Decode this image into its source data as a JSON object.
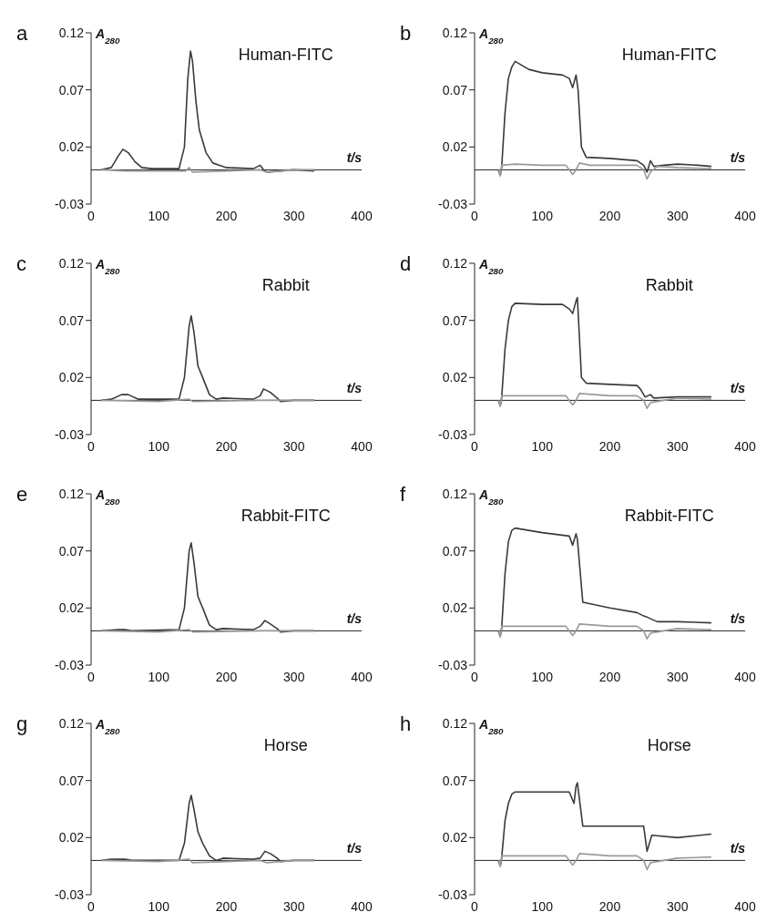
{
  "chart_data": [
    {
      "type": "line",
      "title": "Human-FITC",
      "annotations": [
        "a"
      ],
      "xlabel": "t/s",
      "ylabel": "A$_{280}$",
      "xlim": [
        0,
        400
      ],
      "xticks": [
        0,
        100,
        200,
        300,
        400
      ],
      "ylim": [
        -0.03,
        0.12
      ],
      "yticks": [
        -0.03,
        0.02,
        0.07,
        0.12
      ],
      "marker": "none",
      "series": [
        {
          "color": "#3a3a3a",
          "x": [
            15,
            30,
            40,
            47,
            55,
            65,
            75,
            90,
            130,
            138,
            143,
            147,
            150,
            155,
            160,
            170,
            180,
            190,
            200,
            240,
            250,
            255,
            260,
            280,
            300,
            330
          ],
          "values": [
            0,
            0.002,
            0.012,
            0.018,
            0.015,
            0.007,
            0.002,
            0.001,
            0.001,
            0.02,
            0.08,
            0.104,
            0.095,
            0.06,
            0.035,
            0.015,
            0.006,
            0.004,
            0.002,
            0.001,
            0.004,
            0,
            -0.002,
            -0.001,
            0,
            -0.001
          ]
        },
        {
          "color": "#9a9a9a",
          "x": [
            15,
            50,
            100,
            140,
            145,
            150,
            200,
            250,
            260,
            300,
            330
          ],
          "values": [
            0,
            -0.001,
            -0.001,
            -0.001,
            0.002,
            -0.002,
            -0.001,
            0,
            -0.002,
            0,
            0
          ]
        }
      ]
    },
    {
      "type": "line",
      "title": "Human-FITC",
      "annotations": [
        "b"
      ],
      "xlabel": "t/s",
      "ylabel": "A$_{280}$",
      "xlim": [
        0,
        400
      ],
      "xticks": [
        0,
        100,
        200,
        300,
        400
      ],
      "ylim": [
        -0.03,
        0.12
      ],
      "yticks": [
        -0.03,
        0.02,
        0.07,
        0.12
      ],
      "marker": "none",
      "series": [
        {
          "color": "#3a3a3a",
          "x": [
            35,
            38,
            40,
            45,
            50,
            55,
            60,
            80,
            100,
            130,
            140,
            145,
            150,
            153,
            158,
            165,
            200,
            240,
            250,
            255,
            260,
            265,
            280,
            300,
            330,
            350
          ],
          "values": [
            0,
            -0.005,
            0.002,
            0.05,
            0.08,
            0.09,
            0.095,
            0.088,
            0.085,
            0.083,
            0.08,
            0.072,
            0.083,
            0.07,
            0.02,
            0.011,
            0.01,
            0.008,
            0.004,
            -0.002,
            0.008,
            0.003,
            0.004,
            0.005,
            0.004,
            0.003
          ]
        },
        {
          "color": "#9a9a9a",
          "x": [
            35,
            38,
            40,
            60,
            100,
            135,
            140,
            145,
            150,
            155,
            170,
            200,
            240,
            250,
            255,
            260,
            270,
            300,
            350
          ],
          "values": [
            0,
            -0.005,
            0.004,
            0.005,
            0.004,
            0.004,
            0,
            -0.004,
            0,
            0.006,
            0.004,
            0.004,
            0.004,
            0,
            -0.008,
            -0.002,
            0.003,
            0.002,
            0.001
          ]
        }
      ]
    },
    {
      "type": "line",
      "title": "Rabbit",
      "annotations": [
        "c"
      ],
      "xlabel": "t/s",
      "ylabel": "A$_{280}$",
      "xlim": [
        0,
        400
      ],
      "xticks": [
        0,
        100,
        200,
        300,
        400
      ],
      "ylim": [
        -0.03,
        0.12
      ],
      "yticks": [
        -0.03,
        0.02,
        0.07,
        0.12
      ],
      "marker": "none",
      "series": [
        {
          "color": "#3a3a3a",
          "x": [
            15,
            30,
            45,
            55,
            70,
            130,
            138,
            145,
            148,
            152,
            158,
            165,
            175,
            185,
            195,
            240,
            250,
            255,
            265,
            275,
            280,
            300,
            330
          ],
          "values": [
            0,
            0.001,
            0.005,
            0.005,
            0.001,
            0.001,
            0.02,
            0.065,
            0.074,
            0.06,
            0.03,
            0.02,
            0.005,
            0.001,
            0.002,
            0.001,
            0.004,
            0.01,
            0.007,
            0.002,
            -0.001,
            0,
            0
          ]
        },
        {
          "color": "#9a9a9a",
          "x": [
            15,
            100,
            145,
            150,
            250,
            300,
            330
          ],
          "values": [
            0,
            -0.001,
            0.001,
            -0.001,
            0,
            0,
            0
          ]
        }
      ]
    },
    {
      "type": "line",
      "title": "Rabbit",
      "annotations": [
        "d"
      ],
      "xlabel": "t/s",
      "ylabel": "A$_{280}$",
      "xlim": [
        0,
        400
      ],
      "xticks": [
        0,
        100,
        200,
        300,
        400
      ],
      "ylim": [
        -0.03,
        0.12
      ],
      "yticks": [
        -0.03,
        0.02,
        0.07,
        0.12
      ],
      "marker": "none",
      "series": [
        {
          "color": "#3a3a3a",
          "x": [
            35,
            38,
            40,
            45,
            50,
            55,
            60,
            100,
            130,
            140,
            145,
            150,
            152,
            158,
            165,
            200,
            240,
            245,
            252,
            260,
            265,
            300,
            350
          ],
          "values": [
            0,
            -0.005,
            0.002,
            0.045,
            0.07,
            0.082,
            0.085,
            0.084,
            0.084,
            0.08,
            0.076,
            0.087,
            0.09,
            0.02,
            0.015,
            0.014,
            0.013,
            0.01,
            0.003,
            0.005,
            0.002,
            0.003,
            0.003
          ]
        },
        {
          "color": "#9a9a9a",
          "x": [
            35,
            38,
            40,
            100,
            135,
            140,
            145,
            150,
            155,
            200,
            240,
            250,
            255,
            260,
            300,
            350
          ],
          "values": [
            0,
            -0.005,
            0.004,
            0.004,
            0.004,
            0,
            -0.004,
            0,
            0.006,
            0.004,
            0.004,
            0,
            -0.007,
            -0.002,
            0.002,
            0.001
          ]
        }
      ]
    },
    {
      "type": "line",
      "title": "Rabbit-FITC",
      "annotations": [
        "e"
      ],
      "xlabel": "t/s",
      "ylabel": "A$_{280}$",
      "xlim": [
        0,
        400
      ],
      "xticks": [
        0,
        100,
        200,
        300,
        400
      ],
      "ylim": [
        -0.03,
        0.12
      ],
      "yticks": [
        -0.03,
        0.02,
        0.07,
        0.12
      ],
      "marker": "none",
      "series": [
        {
          "color": "#3a3a3a",
          "x": [
            15,
            40,
            50,
            60,
            130,
            138,
            145,
            148,
            152,
            158,
            165,
            175,
            185,
            195,
            240,
            250,
            257,
            265,
            275,
            280,
            300,
            330
          ],
          "values": [
            0,
            0.001,
            0.001,
            0,
            0.001,
            0.02,
            0.07,
            0.077,
            0.06,
            0.03,
            0.02,
            0.005,
            0.001,
            0.002,
            0.001,
            0.004,
            0.009,
            0.006,
            0.002,
            -0.001,
            0,
            0
          ]
        },
        {
          "color": "#9a9a9a",
          "x": [
            15,
            100,
            145,
            150,
            250,
            300,
            330
          ],
          "values": [
            0,
            -0.001,
            0.001,
            -0.001,
            0,
            0,
            0
          ]
        }
      ]
    },
    {
      "type": "line",
      "title": "Rabbit-FITC",
      "annotations": [
        "f"
      ],
      "xlabel": "t/s",
      "ylabel": "A$_{280}$",
      "xlim": [
        0,
        400
      ],
      "xticks": [
        0,
        100,
        200,
        300,
        400
      ],
      "ylim": [
        -0.03,
        0.12
      ],
      "yticks": [
        -0.03,
        0.02,
        0.07,
        0.12
      ],
      "marker": "none",
      "series": [
        {
          "color": "#3a3a3a",
          "x": [
            35,
            38,
            40,
            45,
            50,
            55,
            60,
            100,
            140,
            145,
            150,
            152,
            160,
            200,
            240,
            250,
            255,
            270,
            300,
            350
          ],
          "values": [
            0,
            -0.005,
            0.002,
            0.05,
            0.078,
            0.088,
            0.09,
            0.086,
            0.083,
            0.075,
            0.085,
            0.08,
            0.025,
            0.02,
            0.016,
            0.013,
            0.012,
            0.008,
            0.008,
            0.007
          ]
        },
        {
          "color": "#9a9a9a",
          "x": [
            35,
            38,
            40,
            100,
            135,
            140,
            145,
            150,
            155,
            200,
            240,
            250,
            255,
            260,
            300,
            350
          ],
          "values": [
            0,
            -0.005,
            0.004,
            0.004,
            0.004,
            0,
            -0.004,
            0,
            0.006,
            0.004,
            0.004,
            0,
            -0.007,
            -0.002,
            0.002,
            0.001
          ]
        }
      ]
    },
    {
      "type": "line",
      "title": "Horse",
      "annotations": [
        "g"
      ],
      "xlabel": "t/s",
      "ylabel": "A$_{280}$",
      "xlim": [
        0,
        400
      ],
      "xticks": [
        0,
        100,
        200,
        300,
        400
      ],
      "ylim": [
        -0.03,
        0.12
      ],
      "yticks": [
        -0.03,
        0.02,
        0.07,
        0.12
      ],
      "marker": "none",
      "series": [
        {
          "color": "#3a3a3a",
          "x": [
            15,
            30,
            50,
            60,
            130,
            138,
            145,
            148,
            152,
            158,
            165,
            175,
            185,
            195,
            240,
            250,
            257,
            265,
            275,
            280,
            300,
            330
          ],
          "values": [
            0,
            0.001,
            0.001,
            0,
            0,
            0.015,
            0.05,
            0.057,
            0.045,
            0.025,
            0.015,
            0.004,
            0,
            0.002,
            0.001,
            0.002,
            0.008,
            0.006,
            0.002,
            -0.001,
            0,
            0
          ]
        },
        {
          "color": "#9a9a9a",
          "x": [
            15,
            100,
            145,
            150,
            250,
            260,
            300,
            330
          ],
          "values": [
            0,
            -0.001,
            0.001,
            -0.002,
            0,
            -0.002,
            0,
            0
          ]
        }
      ]
    },
    {
      "type": "line",
      "title": "Horse",
      "annotations": [
        "h"
      ],
      "xlabel": "t/s",
      "ylabel": "A$_{280}$",
      "xlim": [
        0,
        400
      ],
      "xticks": [
        0,
        100,
        200,
        300,
        400
      ],
      "ylim": [
        -0.03,
        0.12
      ],
      "yticks": [
        -0.03,
        0.02,
        0.07,
        0.12
      ],
      "marker": "none",
      "series": [
        {
          "color": "#3a3a3a",
          "x": [
            35,
            38,
            40,
            45,
            50,
            55,
            60,
            100,
            140,
            147,
            150,
            152,
            160,
            200,
            250,
            255,
            262,
            300,
            350
          ],
          "values": [
            0,
            -0.005,
            0.002,
            0.035,
            0.05,
            0.058,
            0.06,
            0.06,
            0.06,
            0.05,
            0.065,
            0.068,
            0.03,
            0.03,
            0.03,
            0.008,
            0.022,
            0.02,
            0.023
          ]
        },
        {
          "color": "#9a9a9a",
          "x": [
            35,
            38,
            40,
            100,
            135,
            140,
            145,
            150,
            155,
            200,
            240,
            250,
            255,
            260,
            300,
            350
          ],
          "values": [
            0,
            -0.005,
            0.004,
            0.004,
            0.004,
            0,
            -0.004,
            0,
            0.006,
            0.004,
            0.004,
            0,
            -0.008,
            -0.002,
            0.002,
            0.003
          ]
        }
      ]
    }
  ]
}
